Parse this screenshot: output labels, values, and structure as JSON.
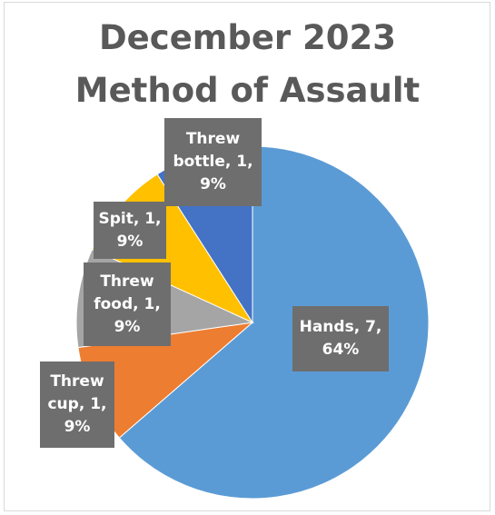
{
  "chart_data": {
    "type": "pie",
    "title": [
      "December 2023",
      "Method of Assault"
    ],
    "slices": [
      {
        "name": "Hands",
        "value": 7,
        "percent": "64%",
        "color": "#5b9bd5",
        "label_lines": [
          "Hands, 7,",
          "64%"
        ]
      },
      {
        "name": "Threw cup",
        "value": 1,
        "percent": "9%",
        "color": "#ed7d31",
        "label_lines": [
          "Threw",
          "cup, 1,",
          "9%"
        ]
      },
      {
        "name": "Threw food",
        "value": 1,
        "percent": "9%",
        "color": "#a5a5a5",
        "label_lines": [
          "Threw",
          "food, 1,",
          "9%"
        ]
      },
      {
        "name": "Spit",
        "value": 1,
        "percent": "9%",
        "color": "#ffc000",
        "label_lines": [
          "Spit, 1,",
          "9%"
        ]
      },
      {
        "name": "Threw bottle",
        "value": 1,
        "percent": "9%",
        "color": "#4472c4",
        "label_lines": [
          "Threw",
          "bottle, 1,",
          "9%"
        ]
      }
    ],
    "legend": "none",
    "data_labels": "category, value, percentage"
  }
}
